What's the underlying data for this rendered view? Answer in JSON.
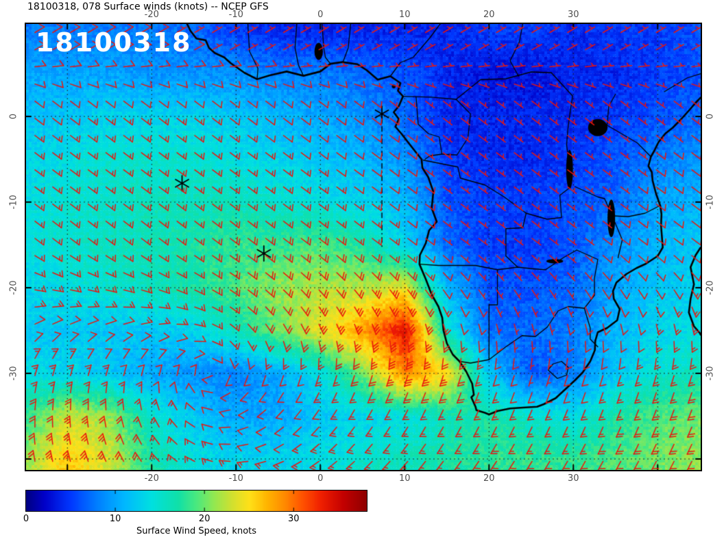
{
  "title": "18100318, 078 Surface winds (knots) -- NCEP GFS",
  "overlay_label": "18100318",
  "axes": {
    "lon_range": [
      -34.9,
      45.1
    ],
    "lat_range": [
      10.8,
      -41.28
    ],
    "lon_ticks": [
      -20,
      -10,
      0,
      10,
      20,
      30
    ],
    "lat_ticks": [
      0,
      -10,
      -20,
      -30
    ],
    "grid_lons": [
      -30,
      -20,
      -10,
      0,
      10,
      20,
      30,
      40
    ],
    "grid_lats": [
      0,
      -10,
      -20,
      -30,
      -40
    ],
    "tick_label_color": "#4d4d4d"
  },
  "colorbar": {
    "label": "Surface Wind Speed, knots",
    "ticks": [
      0,
      10,
      20,
      30
    ],
    "min": 0,
    "max": 38.2,
    "stops": [
      {
        "v": 0,
        "c": "#000080"
      },
      {
        "v": 2,
        "c": "#0000c8"
      },
      {
        "v": 5,
        "c": "#0038ff"
      },
      {
        "v": 8,
        "c": "#0080ff"
      },
      {
        "v": 11,
        "c": "#00b8ff"
      },
      {
        "v": 14,
        "c": "#00e0e0"
      },
      {
        "v": 17,
        "c": "#10e0a8"
      },
      {
        "v": 19,
        "c": "#48e880"
      },
      {
        "v": 21,
        "c": "#90e852"
      },
      {
        "v": 23,
        "c": "#d0e030"
      },
      {
        "v": 25,
        "c": "#ffe018"
      },
      {
        "v": 27,
        "c": "#ffb400"
      },
      {
        "v": 29,
        "c": "#ff8800"
      },
      {
        "v": 31,
        "c": "#ff5000"
      },
      {
        "v": 33,
        "c": "#f02000"
      },
      {
        "v": 35.5,
        "c": "#c40000"
      },
      {
        "v": 38.2,
        "c": "#8c0000"
      }
    ]
  },
  "chart_data": {
    "type": "heatmap",
    "quantity": "surface wind speed",
    "units": "knots",
    "lon_grid": [
      -35,
      -30,
      -25,
      -20,
      -15,
      -10,
      -5,
      0,
      5,
      10,
      15,
      20,
      25,
      30,
      35,
      40,
      45
    ],
    "lat_grid": [
      10,
      5,
      0,
      -5,
      -10,
      -15,
      -20,
      -25,
      -30,
      -35,
      -40
    ],
    "speed_knots": [
      [
        8,
        8,
        8,
        8,
        7,
        5,
        4,
        4,
        4,
        4,
        4,
        5,
        5,
        4,
        5,
        5,
        6
      ],
      [
        10,
        10,
        10,
        9,
        9,
        9,
        8,
        8,
        7,
        6,
        4,
        3,
        3,
        4,
        4,
        5,
        6
      ],
      [
        12,
        12,
        13,
        13,
        13,
        12,
        11,
        10,
        9,
        7,
        4,
        4,
        4,
        4,
        5,
        6,
        7
      ],
      [
        13,
        14,
        15,
        15,
        15,
        14,
        13,
        12,
        11,
        9,
        5,
        4,
        4,
        5,
        6,
        8,
        9
      ],
      [
        14,
        15,
        15,
        16,
        16,
        16,
        15,
        14,
        13,
        11,
        6,
        5,
        5,
        6,
        7,
        10,
        11
      ],
      [
        14,
        15,
        16,
        16,
        17,
        18,
        18,
        19,
        17,
        13,
        7,
        5,
        5,
        6,
        9,
        11,
        12
      ],
      [
        13,
        14,
        15,
        16,
        17,
        19,
        21,
        22,
        22,
        24,
        11,
        6,
        6,
        7,
        10,
        12,
        13
      ],
      [
        12,
        12,
        12,
        12,
        13,
        16,
        20,
        24,
        28,
        34,
        15,
        7,
        7,
        8,
        11,
        13,
        14
      ],
      [
        14,
        13,
        12,
        10,
        9,
        8,
        10,
        14,
        20,
        29,
        25,
        12,
        6,
        8,
        12,
        15,
        16
      ],
      [
        18,
        23,
        21,
        15,
        12,
        10,
        10,
        12,
        13,
        14,
        16,
        17,
        15,
        14,
        17,
        19,
        20
      ],
      [
        21,
        26,
        23,
        17,
        14,
        13,
        13,
        14,
        15,
        16,
        17,
        18,
        18,
        18,
        19,
        20,
        21
      ]
    ],
    "wind_model": {
      "center": [
        -13,
        -30
      ],
      "spiral": 0.3,
      "trade_dir": [
        -0.8,
        0.6
      ],
      "trade_blend_lats": [
        -30,
        -15
      ],
      "nh_dir": [
        -0.85,
        -0.5
      ],
      "nh_blend_lats": [
        2,
        8
      ]
    },
    "barb_grid": {
      "cols": 38,
      "rows": 26
    },
    "markers": [
      {
        "lon": 7.3,
        "lat": 0.3
      },
      {
        "lon": -16.4,
        "lat": -7.8
      },
      {
        "lon": -6.7,
        "lat": -16.0
      }
    ],
    "dashed_track": [
      [
        7.3,
        0.3
      ],
      [
        7.3,
        -15.5
      ]
    ]
  },
  "geo": {
    "coastline": [
      [
        -15.8,
        10.8
      ],
      [
        -15.4,
        10.0
      ],
      [
        -14.7,
        9.1
      ],
      [
        -13.6,
        8.9
      ],
      [
        -13.2,
        8.0
      ],
      [
        -12.5,
        7.4
      ],
      [
        -11.4,
        6.9
      ],
      [
        -10.6,
        6.2
      ],
      [
        -9.0,
        5.1
      ],
      [
        -7.5,
        4.35
      ],
      [
        -6.0,
        4.8
      ],
      [
        -4.0,
        5.25
      ],
      [
        -2.0,
        4.75
      ],
      [
        0.0,
        5.25
      ],
      [
        1.2,
        6.15
      ],
      [
        2.6,
        6.35
      ],
      [
        4.4,
        6.1
      ],
      [
        5.5,
        5.4
      ],
      [
        6.8,
        4.3
      ],
      [
        8.3,
        4.7
      ],
      [
        9.5,
        3.9
      ],
      [
        9.2,
        3.0
      ],
      [
        9.8,
        2.35
      ],
      [
        9.3,
        1.2
      ],
      [
        8.7,
        0.5
      ],
      [
        9.3,
        -0.3
      ],
      [
        8.9,
        -1.2
      ],
      [
        9.6,
        -2.0
      ],
      [
        11.1,
        -3.9
      ],
      [
        12.0,
        -5.0
      ],
      [
        12.1,
        -6.0
      ],
      [
        12.8,
        -7.1
      ],
      [
        13.4,
        -8.8
      ],
      [
        13.2,
        -10.7
      ],
      [
        13.8,
        -12.3
      ],
      [
        12.9,
        -13.3
      ],
      [
        12.5,
        -14.8
      ],
      [
        11.8,
        -16.2
      ],
      [
        11.75,
        -17.25
      ],
      [
        12.5,
        -19.0
      ],
      [
        13.2,
        -20.8
      ],
      [
        14.0,
        -22.2
      ],
      [
        14.45,
        -23.5
      ],
      [
        14.6,
        -25.0
      ],
      [
        15.0,
        -26.5
      ],
      [
        15.7,
        -27.8
      ],
      [
        16.5,
        -28.6
      ],
      [
        17.3,
        -29.8
      ],
      [
        18.0,
        -31.2
      ],
      [
        18.2,
        -32.5
      ],
      [
        17.9,
        -32.8
      ],
      [
        18.4,
        -33.9
      ],
      [
        18.5,
        -34.3
      ],
      [
        19.5,
        -34.6
      ],
      [
        20.0,
        -34.8
      ],
      [
        21.0,
        -34.4
      ],
      [
        22.5,
        -34.1
      ],
      [
        24.0,
        -34.0
      ],
      [
        25.7,
        -33.9
      ],
      [
        26.5,
        -33.6
      ],
      [
        27.9,
        -32.9
      ],
      [
        29.0,
        -31.9
      ],
      [
        30.2,
        -30.8
      ],
      [
        31.1,
        -29.9
      ],
      [
        32.0,
        -28.6
      ],
      [
        32.55,
        -27.3
      ],
      [
        32.6,
        -26.2
      ],
      [
        32.9,
        -25.2
      ],
      [
        34.0,
        -24.7
      ],
      [
        35.2,
        -23.8
      ],
      [
        35.5,
        -22.5
      ],
      [
        34.8,
        -21.3
      ],
      [
        34.7,
        -20.4
      ],
      [
        35.1,
        -19.4
      ],
      [
        36.3,
        -18.4
      ],
      [
        37.5,
        -17.7
      ],
      [
        38.6,
        -17.2
      ],
      [
        40.0,
        -16.3
      ],
      [
        40.6,
        -15.3
      ],
      [
        40.5,
        -14.0
      ],
      [
        40.4,
        -12.8
      ],
      [
        40.45,
        -11.4
      ],
      [
        40.3,
        -10.4
      ],
      [
        39.8,
        -9.0
      ],
      [
        39.4,
        -7.5
      ],
      [
        39.3,
        -6.5
      ],
      [
        38.9,
        -5.8
      ],
      [
        39.2,
        -4.7
      ],
      [
        39.6,
        -4.0
      ],
      [
        40.1,
        -3.0
      ],
      [
        40.9,
        -2.0
      ],
      [
        41.8,
        -1.3
      ],
      [
        42.8,
        -0.3
      ],
      [
        43.8,
        0.8
      ],
      [
        44.5,
        1.6
      ],
      [
        45.1,
        2.2
      ]
    ],
    "madagascar": [
      [
        45.1,
        -15.3
      ],
      [
        44.5,
        -16.2
      ],
      [
        43.9,
        -17.6
      ],
      [
        44.3,
        -19.6
      ],
      [
        43.9,
        -21.3
      ],
      [
        43.7,
        -22.9
      ],
      [
        44.3,
        -24.5
      ],
      [
        45.0,
        -25.3
      ],
      [
        45.1,
        -25.5
      ]
    ],
    "borders": [
      [
        [
          -8.6,
          10.8
        ],
        [
          -8.4,
          7.6
        ],
        [
          -7.4,
          5.6
        ],
        [
          -7.5,
          4.35
        ]
      ],
      [
        [
          -2.8,
          10.8
        ],
        [
          -3.0,
          8.0
        ],
        [
          -2.6,
          6.0
        ],
        [
          -2.0,
          4.75
        ]
      ],
      [
        [
          0.2,
          10.8
        ],
        [
          0.4,
          8.0
        ],
        [
          0.6,
          6.9
        ],
        [
          1.2,
          6.15
        ]
      ],
      [
        [
          3.6,
          10.8
        ],
        [
          3.3,
          8.0
        ],
        [
          2.7,
          6.4
        ]
      ],
      [
        [
          8.3,
          4.7
        ],
        [
          9.5,
          6.3
        ],
        [
          11.0,
          6.9
        ],
        [
          13.0,
          9.2
        ],
        [
          14.2,
          10.8
        ]
      ],
      [
        [
          9.8,
          2.35
        ],
        [
          13.2,
          2.25
        ],
        [
          16.1,
          2.0
        ]
      ],
      [
        [
          11.35,
          2.3
        ],
        [
          11.6,
          -0.9
        ],
        [
          12.8,
          -2.0
        ],
        [
          14.1,
          -2.4
        ],
        [
          14.4,
          -4.4
        ],
        [
          13.0,
          -4.6
        ],
        [
          12.4,
          -5.0
        ]
      ],
      [
        [
          16.1,
          2.0
        ],
        [
          17.8,
          0.3
        ],
        [
          17.5,
          -2.5
        ],
        [
          16.2,
          -4.5
        ],
        [
          14.4,
          -4.4
        ]
      ],
      [
        [
          16.1,
          2.0
        ],
        [
          19.0,
          4.3
        ],
        [
          22.0,
          4.4
        ],
        [
          25.0,
          5.2
        ],
        [
          27.4,
          5.1
        ]
      ],
      [
        [
          24.0,
          10.8
        ],
        [
          23.6,
          8.7
        ],
        [
          22.5,
          6.5
        ],
        [
          23.5,
          4.7
        ]
      ],
      [
        [
          27.4,
          5.1
        ],
        [
          29.9,
          2.4
        ],
        [
          29.55,
          0.0
        ],
        [
          29.35,
          -1.5
        ],
        [
          29.2,
          -3.3
        ],
        [
          29.35,
          -4.5
        ]
      ],
      [
        [
          29.35,
          -4.5
        ],
        [
          29.6,
          -8.3
        ],
        [
          28.4,
          -9.2
        ],
        [
          28.6,
          -11.8
        ],
        [
          26.9,
          -12.0
        ],
        [
          24.4,
          -11.3
        ]
      ],
      [
        [
          12.2,
          -5.1
        ],
        [
          16.3,
          -5.9
        ],
        [
          16.6,
          -7.2
        ],
        [
          19.5,
          -8.0
        ],
        [
          21.8,
          -9.4
        ],
        [
          24.4,
          -11.3
        ]
      ],
      [
        [
          24.4,
          -11.3
        ],
        [
          24.0,
          -13.0
        ],
        [
          22.0,
          -13.1
        ],
        [
          22.0,
          -16.3
        ],
        [
          23.4,
          -17.6
        ]
      ],
      [
        [
          11.75,
          -17.25
        ],
        [
          14.0,
          -17.4
        ],
        [
          18.4,
          -17.4
        ],
        [
          21.0,
          -17.9
        ],
        [
          23.4,
          -17.6
        ],
        [
          25.3,
          -17.8
        ]
      ],
      [
        [
          21.0,
          -17.9
        ],
        [
          21.0,
          -22.0
        ],
        [
          20.0,
          -22.0
        ],
        [
          20.0,
          -28.4
        ]
      ],
      [
        [
          16.5,
          -28.6
        ],
        [
          17.8,
          -28.8
        ],
        [
          20.0,
          -28.4
        ]
      ],
      [
        [
          20.0,
          -28.4
        ],
        [
          22.0,
          -26.9
        ],
        [
          23.9,
          -25.6
        ],
        [
          25.5,
          -25.7
        ],
        [
          26.9,
          -24.6
        ]
      ],
      [
        [
          26.9,
          -24.6
        ],
        [
          28.2,
          -22.7
        ],
        [
          29.4,
          -22.2
        ],
        [
          31.3,
          -22.4
        ]
      ],
      [
        [
          25.3,
          -17.8
        ],
        [
          26.7,
          -17.9
        ],
        [
          28.8,
          -16.5
        ],
        [
          30.4,
          -15.6
        ]
      ],
      [
        [
          30.4,
          -15.6
        ],
        [
          32.9,
          -16.7
        ],
        [
          32.5,
          -18.9
        ],
        [
          32.5,
          -20.9
        ],
        [
          31.3,
          -22.4
        ]
      ],
      [
        [
          31.3,
          -22.4
        ],
        [
          32.0,
          -24.7
        ],
        [
          32.0,
          -26.0
        ],
        [
          32.9,
          -26.9
        ]
      ],
      [
        [
          27.0,
          -29.6
        ],
        [
          27.6,
          -28.9
        ],
        [
          28.6,
          -28.6
        ],
        [
          29.4,
          -29.3
        ],
        [
          29.2,
          -30.2
        ],
        [
          28.1,
          -30.6
        ],
        [
          27.0,
          -29.6
        ]
      ],
      [
        [
          30.2,
          -8.2
        ],
        [
          32.9,
          -9.4
        ],
        [
          33.7,
          -9.6
        ]
      ],
      [
        [
          33.7,
          -9.6
        ],
        [
          34.6,
          -11.6
        ],
        [
          35.8,
          -14.4
        ],
        [
          35.3,
          -16.5
        ]
      ],
      [
        [
          40.3,
          -10.4
        ],
        [
          38.5,
          -11.3
        ],
        [
          36.5,
          -11.7
        ],
        [
          34.6,
          -11.6
        ]
      ],
      [
        [
          33.95,
          -1.0
        ],
        [
          37.6,
          -3.1
        ],
        [
          39.2,
          -4.7
        ]
      ],
      [
        [
          34.0,
          -1.0
        ],
        [
          34.2,
          1.2
        ],
        [
          35.0,
          2.6
        ]
      ],
      [
        [
          40.8,
          2.9
        ],
        [
          43.5,
          4.5
        ],
        [
          45.1,
          5.0
        ]
      ]
    ],
    "lakes": [
      {
        "lon": 32.9,
        "lat": -1.3,
        "rx": 1.15,
        "ry": 1.0
      },
      {
        "lon": 29.55,
        "lat": -6.2,
        "rx": 0.4,
        "ry": 2.3
      },
      {
        "lon": 34.5,
        "lat": -11.9,
        "rx": 0.45,
        "ry": 2.2
      },
      {
        "lon": -0.2,
        "lat": 7.6,
        "rx": 0.5,
        "ry": 1.0
      },
      {
        "lon": 27.8,
        "lat": -16.9,
        "rx": 1.0,
        "ry": 0.25
      }
    ],
    "islands": [
      {
        "lon": 8.7,
        "lat": 3.5,
        "r": 0.22
      }
    ]
  },
  "colors": {
    "barb": "#e9150d",
    "coast": "#000000",
    "border": "#000000",
    "gridline": "#111111",
    "graticule": "#ffffff",
    "marker": "#000000",
    "frame": "#000000",
    "overlay_text": "#ffffff",
    "title_text": "#000000"
  }
}
